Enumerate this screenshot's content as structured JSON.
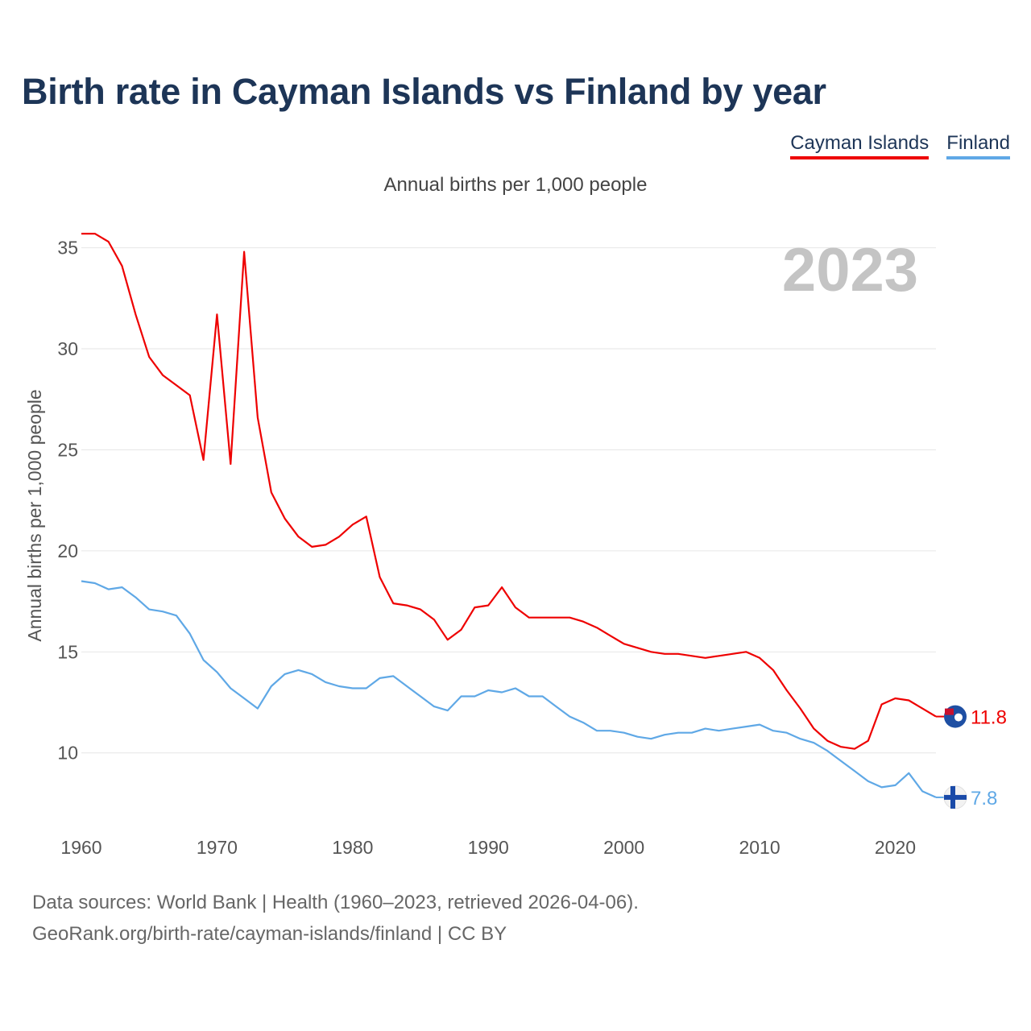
{
  "title": "Birth rate in Cayman Islands vs Finland by year",
  "subtitle": "Annual births per 1,000 people",
  "legend": [
    "Cayman Islands",
    "Finland"
  ],
  "year_display": "2023",
  "footer": {
    "line1": "Data sources: World Bank | Health (1960–2023, retrieved 2026-04-06).",
    "line2": "GeoRank.org/birth-rate/cayman-islands/finland | CC BY"
  },
  "colors": {
    "cayman": "#ee0000",
    "finland": "#5fa8e6",
    "title": "#1d3557"
  },
  "chart_data": {
    "type": "line",
    "title": "Birth rate in Cayman Islands vs Finland by year",
    "xlabel": "",
    "ylabel": "Annual births per 1,000 people",
    "xlim": [
      1960,
      2023
    ],
    "ylim": [
      7,
      36.5
    ],
    "yticks": [
      10,
      15,
      20,
      25,
      30,
      35
    ],
    "xticks": [
      1960,
      1970,
      1980,
      1990,
      2000,
      2010,
      2020
    ],
    "grid": true,
    "legend_position": "top-right",
    "x": [
      1960,
      1961,
      1962,
      1963,
      1964,
      1965,
      1966,
      1967,
      1968,
      1969,
      1970,
      1971,
      1972,
      1973,
      1974,
      1975,
      1976,
      1977,
      1978,
      1979,
      1980,
      1981,
      1982,
      1983,
      1984,
      1985,
      1986,
      1987,
      1988,
      1989,
      1990,
      1991,
      1992,
      1993,
      1994,
      1995,
      1996,
      1997,
      1998,
      1999,
      2000,
      2001,
      2002,
      2003,
      2004,
      2005,
      2006,
      2007,
      2008,
      2009,
      2010,
      2011,
      2012,
      2013,
      2014,
      2015,
      2016,
      2017,
      2018,
      2019,
      2020,
      2021,
      2022,
      2023
    ],
    "series": [
      {
        "name": "Cayman Islands",
        "color": "#ee0000",
        "end_label": "11.8",
        "values": [
          35.7,
          35.7,
          35.3,
          34.1,
          31.7,
          29.6,
          28.7,
          28.2,
          27.7,
          24.5,
          31.7,
          24.3,
          34.8,
          26.6,
          22.9,
          21.6,
          20.7,
          20.2,
          20.3,
          20.7,
          21.3,
          21.7,
          18.7,
          17.4,
          17.3,
          17.1,
          16.6,
          15.6,
          16.1,
          17.2,
          17.3,
          18.2,
          17.2,
          16.7,
          16.7,
          16.7,
          16.7,
          16.5,
          16.2,
          15.8,
          15.4,
          15.2,
          15.0,
          14.9,
          14.9,
          14.8,
          14.7,
          14.8,
          14.9,
          15.0,
          14.7,
          14.1,
          13.1,
          12.2,
          11.2,
          10.6,
          10.3,
          10.2,
          10.6,
          12.4,
          12.7,
          12.6,
          12.2,
          11.8
        ]
      },
      {
        "name": "Finland",
        "color": "#5fa8e6",
        "end_label": "7.8",
        "values": [
          18.5,
          18.4,
          18.1,
          18.2,
          17.7,
          17.1,
          17.0,
          16.8,
          15.9,
          14.6,
          14.0,
          13.2,
          12.7,
          12.2,
          13.3,
          13.9,
          14.1,
          13.9,
          13.5,
          13.3,
          13.2,
          13.2,
          13.7,
          13.8,
          13.3,
          12.8,
          12.3,
          12.1,
          12.8,
          12.8,
          13.1,
          13.0,
          13.2,
          12.8,
          12.8,
          12.3,
          11.8,
          11.5,
          11.1,
          11.1,
          11.0,
          10.8,
          10.7,
          10.9,
          11.0,
          11.0,
          11.2,
          11.1,
          11.2,
          11.3,
          11.4,
          11.1,
          11.0,
          10.7,
          10.5,
          10.1,
          9.6,
          9.1,
          8.6,
          8.3,
          8.4,
          9.0,
          8.1,
          7.8
        ]
      }
    ]
  }
}
